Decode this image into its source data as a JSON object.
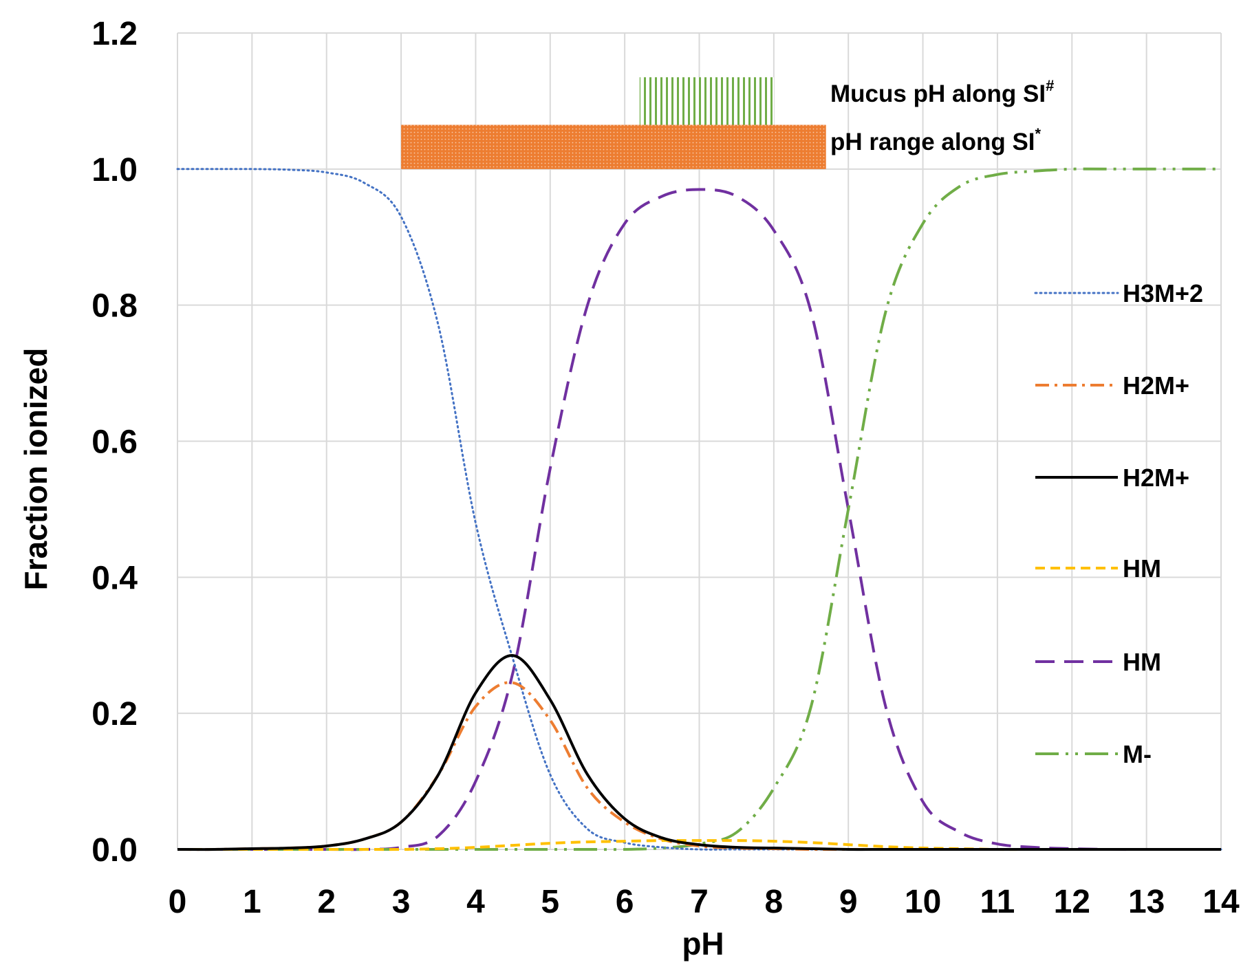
{
  "chart_data": {
    "type": "line",
    "title": "",
    "xlabel": "pH",
    "ylabel": "Fraction ionized",
    "xlim": [
      0,
      14
    ],
    "ylim": [
      0,
      1.2
    ],
    "x_ticks": [
      "0",
      "1",
      "2",
      "3",
      "4",
      "5",
      "6",
      "7",
      "8",
      "9",
      "10",
      "11",
      "12",
      "13",
      "14"
    ],
    "y_ticks": [
      "0.0",
      "0.2",
      "0.4",
      "0.6",
      "0.8",
      "1.0",
      "1.2"
    ],
    "grid": true,
    "legend_position": "right",
    "x": [
      0,
      0.5,
      1,
      1.5,
      2,
      2.5,
      3,
      3.5,
      4,
      4.5,
      5,
      5.5,
      6,
      6.5,
      7,
      7.5,
      8,
      8.5,
      9,
      9.5,
      10,
      10.5,
      11,
      11.5,
      12,
      12.5,
      13,
      13.5,
      14
    ],
    "series": [
      {
        "name": "H3M+2",
        "color": "#4472C4",
        "dash": "dotted",
        "values": [
          1.0,
          1.0,
          1.0,
          0.999,
          0.995,
          0.98,
          0.93,
          0.77,
          0.48,
          0.28,
          0.11,
          0.03,
          0.01,
          0.003,
          0.0,
          0,
          0,
          0,
          0,
          0,
          0,
          0,
          0,
          0,
          0,
          0,
          0,
          0,
          0
        ]
      },
      {
        "name": "H2M+",
        "color": "#ED7D31",
        "dash": "dashdot",
        "values": [
          0,
          0,
          0.001,
          0.002,
          0.005,
          0.015,
          0.04,
          0.11,
          0.21,
          0.245,
          0.19,
          0.09,
          0.04,
          0.015,
          0.005,
          0.002,
          0.001,
          0,
          0,
          0,
          0,
          0,
          0,
          0,
          0,
          0,
          0,
          0,
          0
        ]
      },
      {
        "name": "H2M+",
        "color": "#000000",
        "dash": "solid",
        "values": [
          0,
          0,
          0.001,
          0.002,
          0.005,
          0.015,
          0.04,
          0.11,
          0.23,
          0.285,
          0.22,
          0.11,
          0.045,
          0.017,
          0.007,
          0.003,
          0.002,
          0.001,
          0,
          0,
          0,
          0,
          0,
          0,
          0,
          0,
          0,
          0,
          0
        ]
      },
      {
        "name": "HM",
        "color": "#FFC000",
        "dash": "dashed",
        "values": [
          0,
          0,
          0,
          0,
          0,
          0,
          0,
          0.001,
          0.003,
          0.006,
          0.009,
          0.011,
          0.012,
          0.013,
          0.013,
          0.013,
          0.012,
          0.01,
          0.007,
          0.004,
          0.002,
          0.001,
          0,
          0,
          0,
          0,
          0,
          0,
          0
        ]
      },
      {
        "name": "HM",
        "color": "#7030A0",
        "dash": "longdash",
        "values": [
          0,
          0,
          0,
          0,
          0,
          0,
          0.003,
          0.02,
          0.1,
          0.26,
          0.56,
          0.8,
          0.92,
          0.96,
          0.97,
          0.96,
          0.91,
          0.79,
          0.5,
          0.21,
          0.07,
          0.025,
          0.008,
          0.003,
          0.001,
          0,
          0,
          0,
          0
        ]
      },
      {
        "name": "M-",
        "color": "#70AD47",
        "dash": "longdashdotdot",
        "values": [
          0,
          0,
          0,
          0,
          0,
          0,
          0,
          0,
          0,
          0,
          0,
          0,
          0,
          0.002,
          0.008,
          0.025,
          0.09,
          0.21,
          0.5,
          0.79,
          0.92,
          0.975,
          0.992,
          0.997,
          1.0,
          1.0,
          1.0,
          1.0,
          1.0
        ]
      }
    ],
    "annotations": [
      {
        "label": "Mucus pH along SI",
        "superscript": "#",
        "x_range": [
          6.2,
          8.0
        ],
        "y_range": [
          1.0,
          1.135
        ],
        "fill": "vertical-stripes",
        "color": "#70AD47"
      },
      {
        "label": "pH range along SI",
        "superscript": "*",
        "x_range": [
          3.0,
          8.7
        ],
        "y_range": [
          1.0,
          1.065
        ],
        "fill": "dotted",
        "color": "#ED7D31"
      }
    ]
  }
}
